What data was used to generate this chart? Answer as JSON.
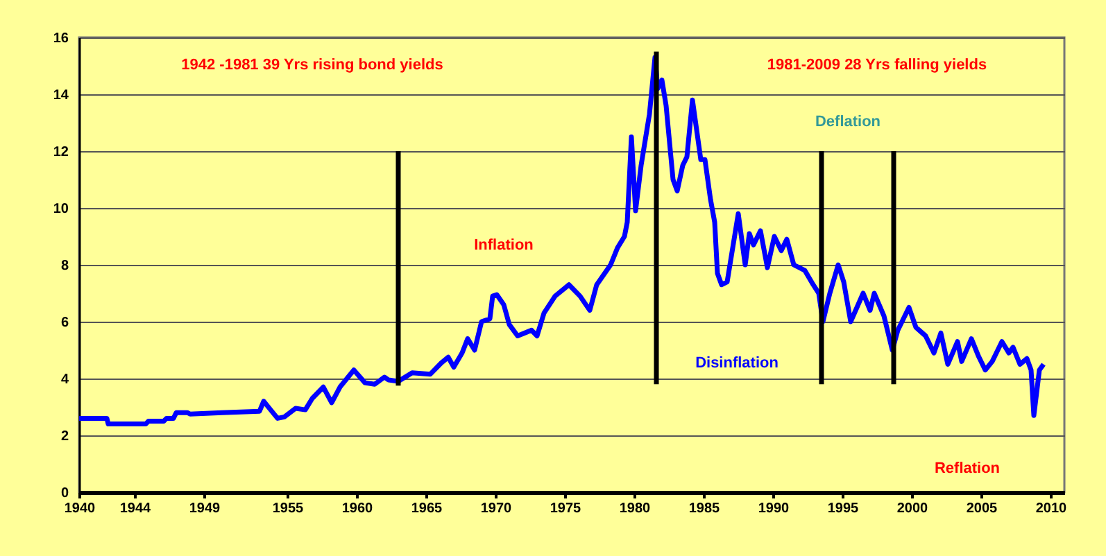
{
  "chart_data": {
    "type": "line",
    "xlim": [
      1940,
      2011
    ],
    "xticks": [
      1940,
      1944,
      1949,
      1955,
      1960,
      1965,
      1970,
      1975,
      1980,
      1985,
      1990,
      1995,
      2000,
      2005,
      2010
    ],
    "line_style": "solid",
    "ylim": [
      0,
      16
    ],
    "yticks": [
      0,
      2,
      4,
      6,
      8,
      10,
      12,
      14,
      16
    ],
    "grid": "y",
    "series": [
      {
        "color": "#0000ff",
        "x": [
          1940,
          1942,
          1942.1,
          1944.8,
          1945,
          1946.1,
          1946.3,
          1946.8,
          1947,
          1947.8,
          1948,
          1950.3,
          1953,
          1953.3,
          1953.8,
          1954.3,
          1954.8,
          1955.6,
          1956.3,
          1956.8,
          1957.6,
          1958.2,
          1958.8,
          1959.8,
          1960.6,
          1961.3,
          1962,
          1962.3,
          1963,
          1964,
          1965.3,
          1966.1,
          1966.6,
          1967,
          1967.6,
          1968,
          1968.5,
          1969,
          1969.6,
          1969.8,
          1970.1,
          1970.6,
          1971,
          1971.6,
          1972.6,
          1973,
          1973.5,
          1974.3,
          1975.3,
          1976.1,
          1976.8,
          1977.3,
          1978.3,
          1978.8,
          1979.3,
          1979.5,
          1979.8,
          1980.1,
          1980.5,
          1980.8,
          1981.1,
          1981.5,
          1981.7,
          1982,
          1982.3,
          1982.8,
          1983.1,
          1983.5,
          1983.8,
          1984.2,
          1984.8,
          1985.1,
          1985.5,
          1985.8,
          1986,
          1986.3,
          1986.7,
          1987.5,
          1988,
          1988.3,
          1988.6,
          1989.1,
          1989.6,
          1990.1,
          1990.6,
          1991,
          1991.5,
          1992.3,
          1992.9,
          1993.3,
          1993.6,
          1994.1,
          1994.7,
          1995.1,
          1995.6,
          1996.5,
          1997,
          1997.3,
          1998,
          1998.6,
          1999,
          1999.8,
          2000.3,
          2001,
          2001.6,
          2002.1,
          2002.6,
          2003.3,
          2003.6,
          2004.3,
          2004.8,
          2005.3,
          2005.8,
          2006.5,
          2007,
          2007.3,
          2007.8,
          2008.3,
          2008.6,
          2008.8,
          2009,
          2009.2,
          2009.5
        ],
        "values": [
          2.6,
          2.6,
          2.4,
          2.4,
          2.5,
          2.5,
          2.6,
          2.6,
          2.8,
          2.8,
          2.75,
          2.8,
          2.85,
          3.2,
          2.9,
          2.6,
          2.65,
          2.95,
          2.9,
          3.3,
          3.7,
          3.15,
          3.7,
          4.3,
          3.85,
          3.8,
          4.05,
          3.95,
          3.9,
          4.2,
          4.15,
          4.55,
          4.75,
          4.4,
          4.9,
          5.4,
          5.0,
          6.0,
          6.1,
          6.9,
          6.95,
          6.6,
          5.9,
          5.5,
          5.7,
          5.5,
          6.3,
          6.9,
          7.3,
          6.9,
          6.4,
          7.3,
          8.0,
          8.6,
          9.0,
          9.5,
          12.5,
          9.9,
          11.5,
          12.4,
          13.3,
          15.3,
          14.2,
          14.5,
          13.6,
          11.0,
          10.6,
          11.5,
          11.8,
          13.8,
          11.7,
          11.7,
          10.3,
          9.5,
          7.7,
          7.3,
          7.4,
          9.8,
          8.0,
          9.1,
          8.7,
          9.2,
          7.9,
          9.0,
          8.5,
          8.9,
          8.0,
          7.8,
          7.3,
          7.0,
          6.0,
          7.0,
          8.0,
          7.4,
          6.0,
          7.0,
          6.4,
          7.0,
          6.2,
          5.0,
          5.7,
          6.5,
          5.8,
          5.5,
          4.9,
          5.6,
          4.5,
          5.3,
          4.6,
          5.4,
          4.8,
          4.3,
          4.6,
          5.3,
          4.9,
          5.1,
          4.5,
          4.7,
          4.3,
          2.7,
          3.5,
          4.3,
          4.5
        ]
      },
      {
        "color": "#000000",
        "x": [
          1963,
          1963
        ],
        "values": [
          3.75,
          12
        ]
      },
      {
        "color": "#000000",
        "x": [
          1981.6,
          1981.6
        ],
        "values": [
          3.8,
          15.5
        ]
      },
      {
        "color": "#000000",
        "x": [
          1993.5,
          1993.5
        ],
        "values": [
          3.8,
          12
        ]
      },
      {
        "color": "#000000",
        "x": [
          1998.7,
          1998.7
        ],
        "values": [
          3.8,
          12
        ]
      }
    ],
    "annotations": [
      "1942 -1981  39 Yrs rising bond yields",
      "1981-2009 28 Yrs falling yields",
      "Deflation",
      "Inflation",
      "Disinflation",
      "Reflation"
    ]
  }
}
